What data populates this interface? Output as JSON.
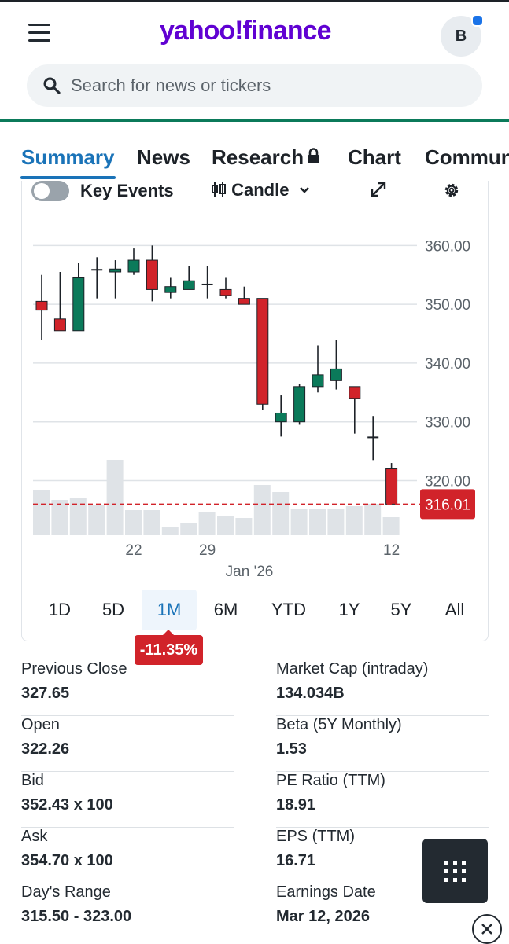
{
  "header": {
    "logo_text": "yahoo!finance",
    "avatar_initial": "B",
    "search_placeholder": "Search for news or tickers"
  },
  "tabs": [
    {
      "label": "Summary",
      "active": true
    },
    {
      "label": "News",
      "active": false
    },
    {
      "label": "Research",
      "locked": true,
      "active": false
    },
    {
      "label": "Chart",
      "active": false
    },
    {
      "label": "Commun",
      "active": false
    }
  ],
  "chart_controls": {
    "key_events_label": "Key Events",
    "key_events_on": false,
    "chart_type_label": "Candle"
  },
  "chart_data": {
    "type": "candlestick",
    "y_ticks": [
      "360.00",
      "350.00",
      "340.00",
      "330.00",
      "320.00"
    ],
    "ylim": [
      309.5,
      367
    ],
    "x_tick_labels": [
      {
        "index": 5,
        "label": "22"
      },
      {
        "index": 9,
        "label": "29"
      },
      {
        "index": 19,
        "label": "12"
      }
    ],
    "x_axis_caption": "Jan '26",
    "last_price": "316.01",
    "last_price_value": 316.01,
    "up_color": "#0b7a5a",
    "down_color": "#d1232a",
    "volume_color": "#dfe3e7",
    "candles": [
      {
        "o": 350.5,
        "h": 355.0,
        "l": 344.0,
        "c": 349.0,
        "v": 0.58
      },
      {
        "o": 347.5,
        "h": 355.5,
        "l": 345.5,
        "c": 345.5,
        "v": 0.45
      },
      {
        "o": 345.5,
        "h": 357.0,
        "l": 345.5,
        "c": 354.5,
        "v": 0.47
      },
      {
        "o": 356.0,
        "h": 358.0,
        "l": 351.0,
        "c": 356.0,
        "v": 0.38
      },
      {
        "o": 355.5,
        "h": 357.5,
        "l": 351.0,
        "c": 356.0,
        "v": 0.96
      },
      {
        "o": 355.5,
        "h": 359.5,
        "l": 355.0,
        "c": 357.5,
        "v": 0.32
      },
      {
        "o": 357.5,
        "h": 360.0,
        "l": 350.5,
        "c": 352.5,
        "v": 0.32
      },
      {
        "o": 352.0,
        "h": 354.5,
        "l": 351.0,
        "c": 353.0,
        "v": 0.1
      },
      {
        "o": 352.5,
        "h": 356.5,
        "l": 352.5,
        "c": 354.0,
        "v": 0.15
      },
      {
        "o": 353.5,
        "h": 356.5,
        "l": 351.0,
        "c": 353.5,
        "v": 0.3
      },
      {
        "o": 352.5,
        "h": 354.5,
        "l": 351.0,
        "c": 351.5,
        "v": 0.24
      },
      {
        "o": 351.0,
        "h": 353.0,
        "l": 350.0,
        "c": 350.0,
        "v": 0.22
      },
      {
        "o": 351.0,
        "h": 351.0,
        "l": 332.0,
        "c": 333.0,
        "v": 0.64
      },
      {
        "o": 330.0,
        "h": 334.5,
        "l": 327.5,
        "c": 331.5,
        "v": 0.55
      },
      {
        "o": 330.0,
        "h": 336.5,
        "l": 329.5,
        "c": 336.0,
        "v": 0.34
      },
      {
        "o": 336.0,
        "h": 343.0,
        "l": 335.0,
        "c": 338.0,
        "v": 0.34
      },
      {
        "o": 337.0,
        "h": 344.0,
        "l": 335.5,
        "c": 339.0,
        "v": 0.34
      },
      {
        "o": 336.0,
        "h": 336.0,
        "l": 328.0,
        "c": 334.0,
        "v": 0.37
      },
      {
        "o": 327.5,
        "h": 331.0,
        "l": 323.5,
        "c": 327.5,
        "v": 0.4
      },
      {
        "o": 322.0,
        "h": 323.0,
        "l": 316.0,
        "c": 316.0,
        "v": 0.23
      }
    ]
  },
  "ranges": [
    {
      "label": "1D",
      "active": false
    },
    {
      "label": "5D",
      "active": false
    },
    {
      "label": "1M",
      "active": true
    },
    {
      "label": "6M",
      "active": false
    },
    {
      "label": "YTD",
      "active": false
    },
    {
      "label": "1Y",
      "active": false
    },
    {
      "label": "5Y",
      "active": false
    },
    {
      "label": "All",
      "active": false
    }
  ],
  "range_change": "-11.35%",
  "stats_left": [
    {
      "label": "Previous Close",
      "value": "327.65"
    },
    {
      "label": "Open",
      "value": "322.26"
    },
    {
      "label": "Bid",
      "value": "352.43 x 100"
    },
    {
      "label": "Ask",
      "value": "354.70 x 100"
    },
    {
      "label": "Day's Range",
      "value": "315.50 - 323.00"
    }
  ],
  "stats_right": [
    {
      "label": "Market Cap (intraday)",
      "value": "134.034B"
    },
    {
      "label": "Beta (5Y Monthly)",
      "value": "1.53"
    },
    {
      "label": "PE Ratio (TTM)",
      "value": "18.91"
    },
    {
      "label": "EPS (TTM)",
      "value": "16.71"
    },
    {
      "label": "Earnings Date",
      "value": "Mar 12, 2026"
    }
  ],
  "icons": {
    "menu": "hamburger-menu-icon",
    "search": "search-icon",
    "lock": "lock-icon",
    "expand": "expand-icon",
    "settings": "gear-icon",
    "grid": "grid-icon",
    "close": "close-icon"
  }
}
